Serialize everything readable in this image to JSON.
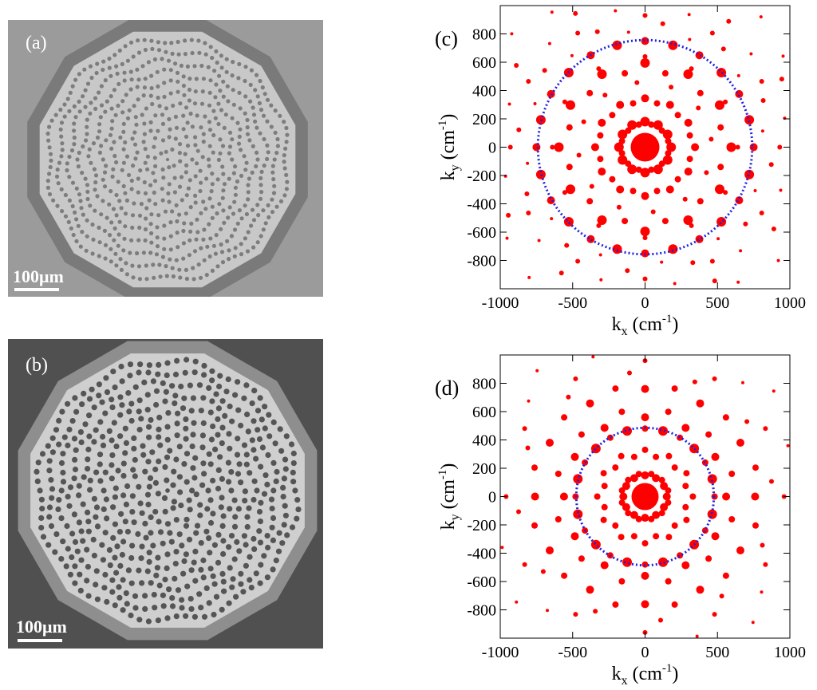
{
  "figure": {
    "panels": [
      {
        "id": "a",
        "label": "(a)",
        "scale_bar": "100μm",
        "background": "#9b9b9b",
        "disk": "#c8c8c8",
        "rim": "#7a7a7a",
        "holes": "#7d7d7d"
      },
      {
        "id": "b",
        "label": "(b)",
        "scale_bar": "100μm",
        "background": "#505050",
        "disk": "#cfcfcf",
        "rim": "#8e8e8e",
        "holes": "#555555"
      }
    ]
  },
  "chart_data": [
    {
      "panel": "c",
      "label": "(c)",
      "type": "scatter",
      "title": "",
      "xlabel": "k_x (cm^-1)",
      "ylabel": "k_y (cm^-1)",
      "xlabel_parts": {
        "k": "k",
        "sub": "x",
        "unit": "(cm",
        "sup": "-1",
        "close": ")"
      },
      "ylabel_parts": {
        "k": "k",
        "sub": "y",
        "unit": "(cm",
        "sup": "-1",
        "close": ")"
      },
      "xlim": [
        -1000,
        1000
      ],
      "ylim": [
        -1000,
        1000
      ],
      "xticks": [
        "-1000",
        "-500",
        "0",
        "500",
        "1000"
      ],
      "xtick_values": [
        -1000,
        -500,
        0,
        500,
        1000
      ],
      "yticks": [
        "800",
        "600",
        "400",
        "200",
        "0",
        "-200",
        "-400",
        "-600",
        "-800"
      ],
      "ytick_values": [
        800,
        600,
        400,
        200,
        0,
        -200,
        -400,
        -600,
        -800
      ],
      "grid": false,
      "point_color": "#ff0000",
      "circle_color": "#2222dd",
      "circle_radius": 740,
      "fold": 12,
      "rings": [
        {
          "r": 0,
          "phase": 0,
          "size": 18
        },
        {
          "r": 165,
          "phase": 15,
          "size": 4
        },
        {
          "r": 180,
          "phase": 0,
          "size": 6
        },
        {
          "r": 320,
          "phase": 15,
          "size": 4
        },
        {
          "r": 345,
          "phase": 0,
          "size": 5
        },
        {
          "r": 460,
          "phase": 7,
          "size": 3
        },
        {
          "r": 540,
          "phase": 15,
          "size": 4
        },
        {
          "r": 595,
          "phase": 0,
          "size": 6
        },
        {
          "r": 640,
          "phase": 30,
          "size": 3
        },
        {
          "r": 745,
          "phase": 15,
          "size": 6
        },
        {
          "r": 750,
          "phase": 0,
          "size": 5
        },
        {
          "r": 820,
          "phase": 8,
          "size": 2
        },
        {
          "r": 880,
          "phase": 22,
          "size": 3
        },
        {
          "r": 930,
          "phase": 0,
          "size": 3
        },
        {
          "r": 985,
          "phase": 12,
          "size": 2
        },
        {
          "r": 1060,
          "phase": 27,
          "size": 3
        },
        {
          "r": 1150,
          "phase": 4,
          "size": 2
        },
        {
          "r": 1220,
          "phase": 19,
          "size": 2
        },
        {
          "r": 1300,
          "phase": 9,
          "size": 2
        }
      ]
    },
    {
      "panel": "d",
      "label": "(d)",
      "type": "scatter",
      "title": "",
      "xlabel": "k_x (cm^-1)",
      "ylabel": "k_y (cm^-1)",
      "xlabel_parts": {
        "k": "k",
        "sub": "x",
        "unit": "(cm",
        "sup": "-1",
        "close": ")"
      },
      "ylabel_parts": {
        "k": "k",
        "sub": "y",
        "unit": "(cm",
        "sup": "-1",
        "close": ")"
      },
      "xlim": [
        -1000,
        1000
      ],
      "ylim": [
        -1000,
        1000
      ],
      "xticks": [
        "-1000",
        "-500",
        "0",
        "500",
        "1000"
      ],
      "xtick_values": [
        -1000,
        -500,
        0,
        500,
        1000
      ],
      "yticks": [
        "800",
        "600",
        "400",
        "200",
        "0",
        "-200",
        "-400",
        "-600",
        "-800"
      ],
      "ytick_values": [
        800,
        600,
        400,
        200,
        0,
        -200,
        -400,
        -600,
        -800
      ],
      "grid": false,
      "point_color": "#ff0000",
      "circle_color": "#2222dd",
      "circle_radius": 475,
      "fold": 12,
      "rings": [
        {
          "r": 0,
          "phase": 0,
          "size": 17
        },
        {
          "r": 150,
          "phase": 0,
          "size": 5
        },
        {
          "r": 165,
          "phase": 15,
          "size": 4
        },
        {
          "r": 290,
          "phase": 15,
          "size": 4
        },
        {
          "r": 330,
          "phase": 0,
          "size": 4
        },
        {
          "r": 480,
          "phase": 15,
          "size": 6
        },
        {
          "r": 480,
          "phase": 0,
          "size": 4
        },
        {
          "r": 560,
          "phase": 0,
          "size": 5
        },
        {
          "r": 620,
          "phase": 15,
          "size": 4
        },
        {
          "r": 760,
          "phase": 0,
          "size": 5
        },
        {
          "r": 790,
          "phase": 15,
          "size": 4
        },
        {
          "r": 880,
          "phase": 7,
          "size": 3
        },
        {
          "r": 960,
          "phase": 0,
          "size": 3
        },
        {
          "r": 1050,
          "phase": 20,
          "size": 2
        },
        {
          "r": 1160,
          "phase": 10,
          "size": 2
        },
        {
          "r": 1260,
          "phase": 25,
          "size": 2
        }
      ]
    }
  ]
}
